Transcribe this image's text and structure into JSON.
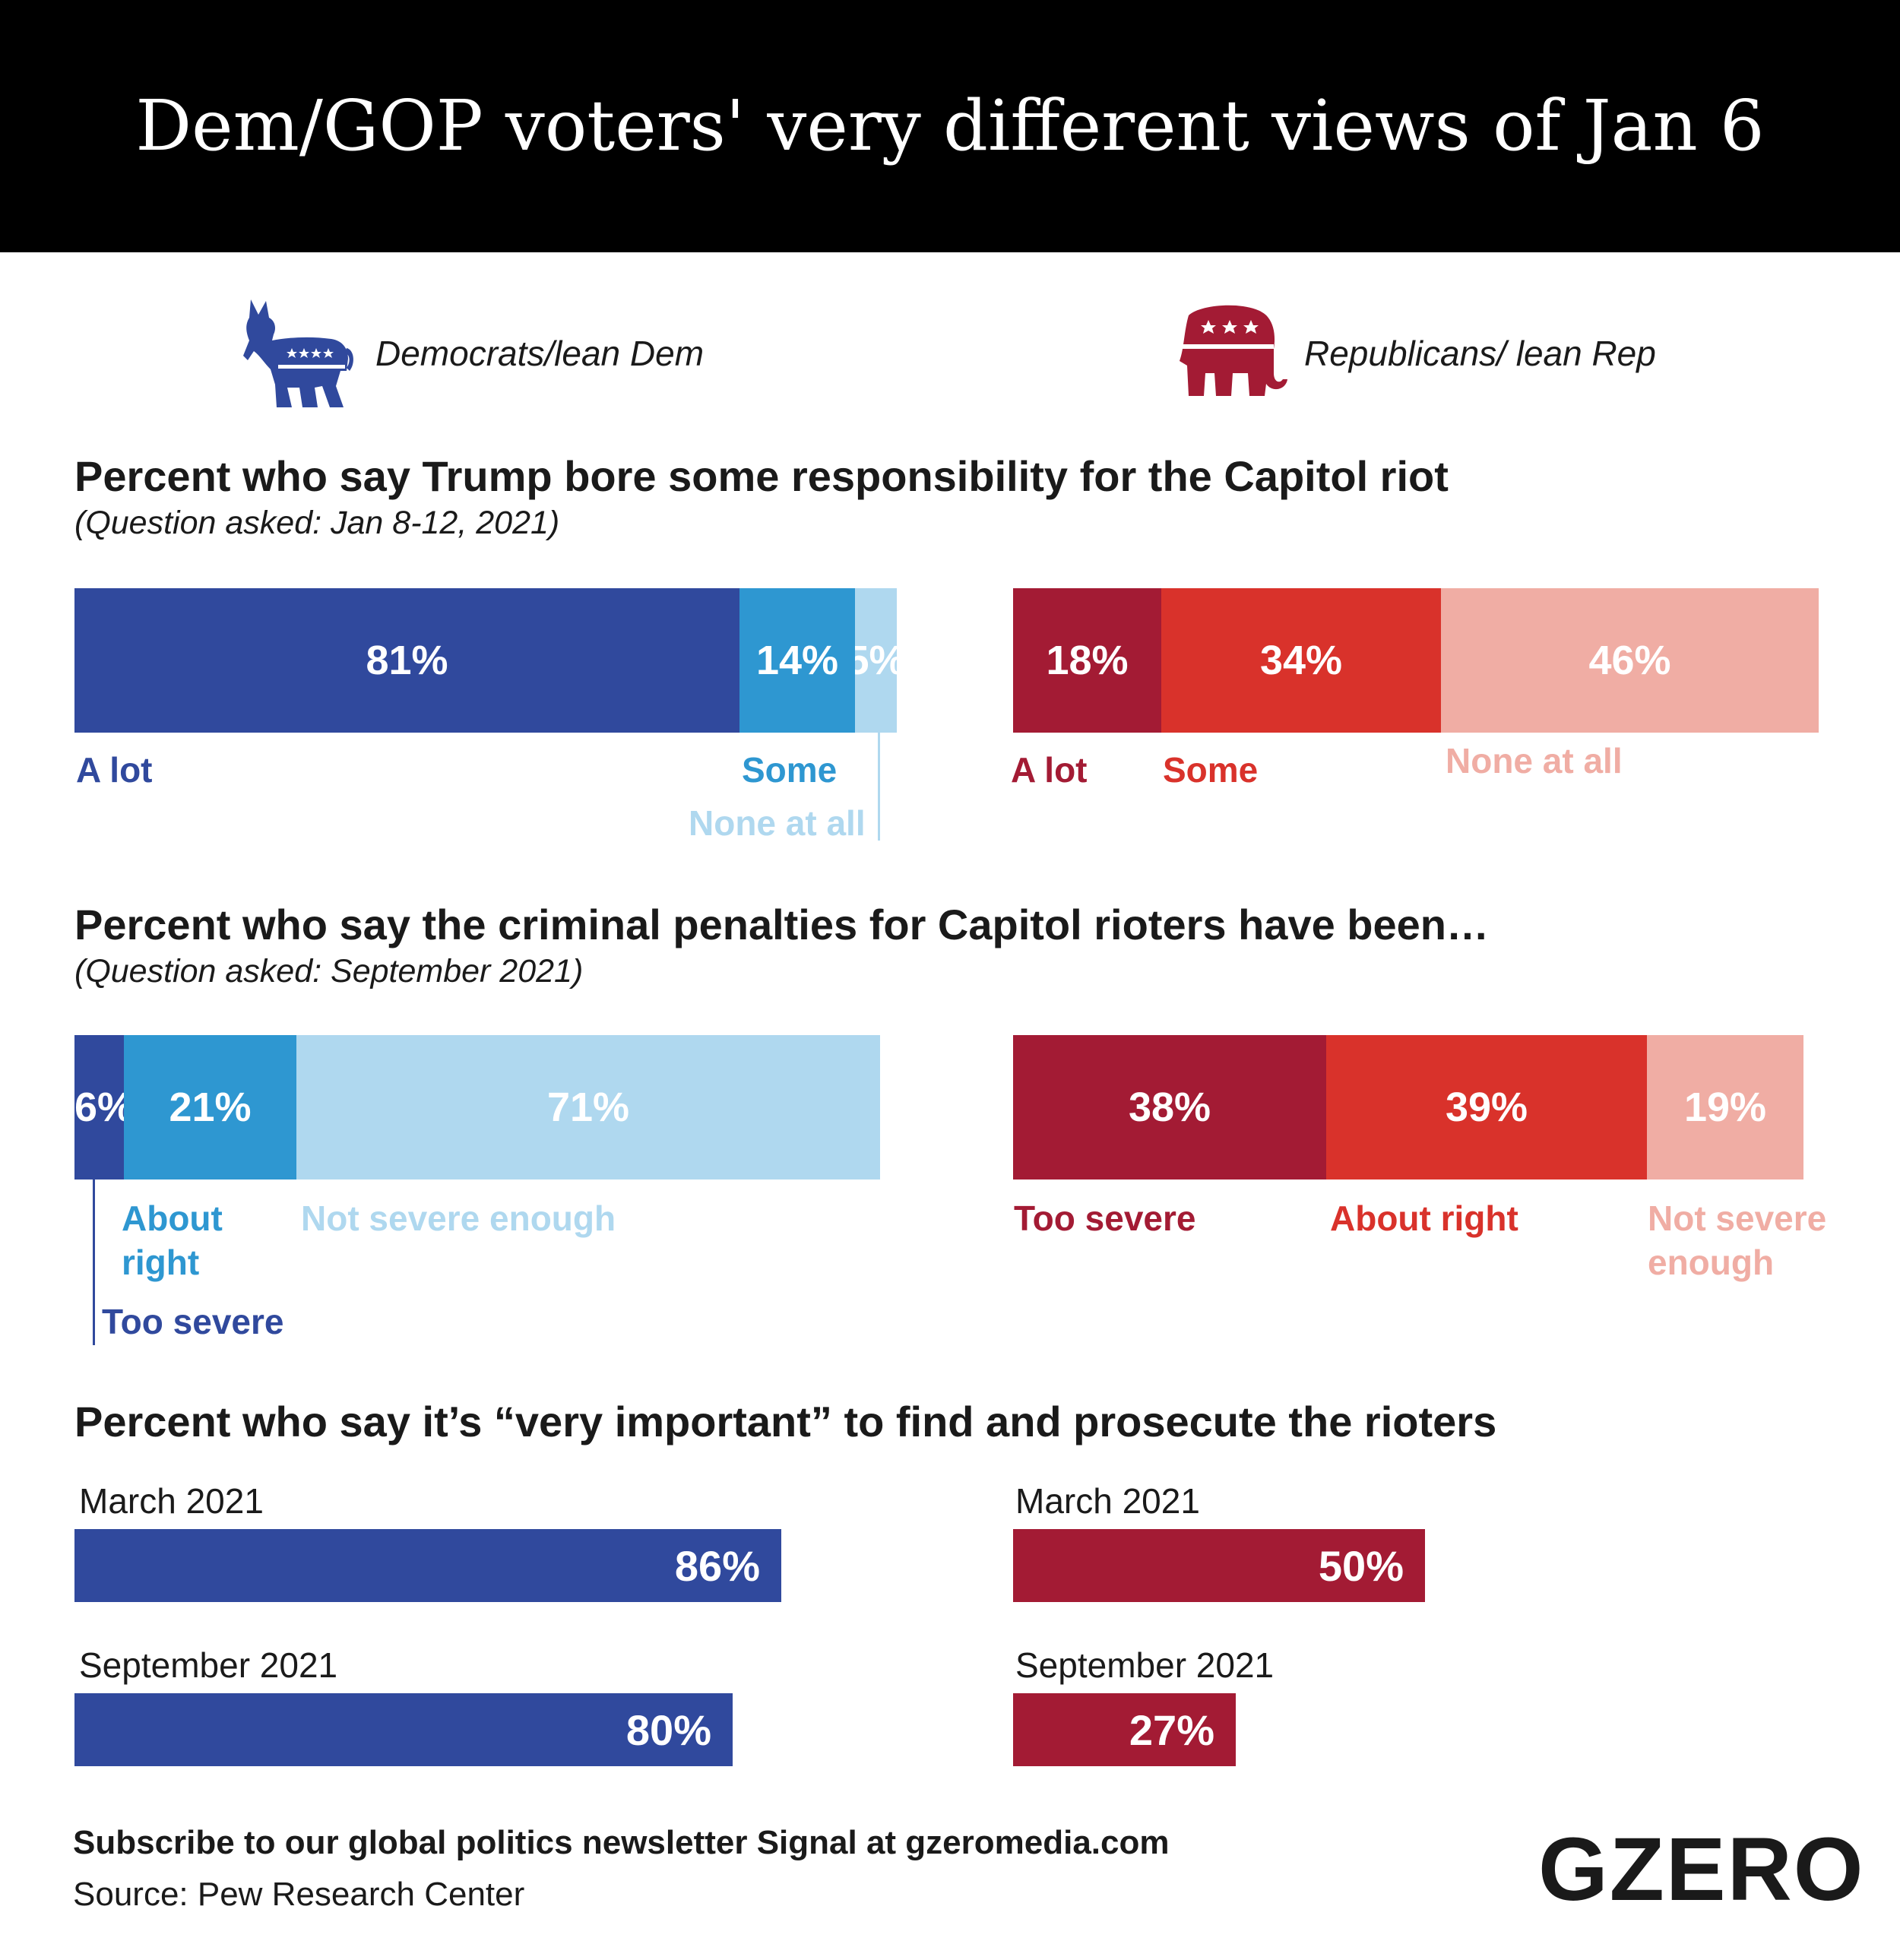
{
  "header": {
    "title": "Dem/GOP voters' very different views of Jan 6"
  },
  "parties": {
    "dem": {
      "label": "Democrats/lean Dem",
      "icon": "donkey-icon",
      "color": "#30499d"
    },
    "rep": {
      "label": "Republicans/ lean Rep",
      "icon": "elephant-icon",
      "color": "#a31b34"
    }
  },
  "colors": {
    "dem_dark": "#30499d",
    "dem_mid": "#2e97d1",
    "dem_light": "#afd8ef",
    "rep_dark": "#a31b34",
    "rep_mid": "#d9322b",
    "rep_light": "#f0ada4"
  },
  "chart_data": [
    {
      "type": "bar",
      "stacked": true,
      "orientation": "horizontal",
      "title": "Percent who say Trump bore some responsibility for the Capitol riot",
      "subtitle": "(Question asked: Jan 8-12, 2021)",
      "categories": [
        "A lot",
        "Some",
        "None at all"
      ],
      "series": [
        {
          "name": "Democrats/lean Dem",
          "values": [
            81,
            14,
            5
          ],
          "labels": [
            "81%",
            "14%",
            "5%"
          ]
        },
        {
          "name": "Republicans/ lean Rep",
          "values": [
            18,
            34,
            46
          ],
          "labels": [
            "18%",
            "34%",
            "46%"
          ]
        }
      ]
    },
    {
      "type": "bar",
      "stacked": true,
      "orientation": "horizontal",
      "title": "Percent who say the criminal penalties for Capitol rioters have been…",
      "subtitle": "(Question asked: September 2021)",
      "categories": [
        "Too severe",
        "About right",
        "Not severe enough"
      ],
      "series": [
        {
          "name": "Democrats/lean Dem",
          "values": [
            6,
            21,
            71
          ],
          "labels": [
            "6%",
            "21%",
            "71%"
          ]
        },
        {
          "name": "Republicans/ lean Rep",
          "values": [
            38,
            39,
            19
          ],
          "labels": [
            "38%",
            "39%",
            "19%"
          ]
        }
      ],
      "rep_labels_wrapped": [
        "Too severe",
        "About right",
        "Not severe\nenough"
      ],
      "dem_labels_wrapped": [
        "Too severe",
        "About\nright",
        "Not severe enough"
      ]
    },
    {
      "type": "bar",
      "orientation": "horizontal",
      "title": "Percent who say it’s “very important” to find and prosecute the rioters",
      "categories": [
        "March 2021",
        "September 2021"
      ],
      "series": [
        {
          "name": "Democrats/lean Dem",
          "values": [
            86,
            80
          ],
          "labels": [
            "86%",
            "80%"
          ]
        },
        {
          "name": "Republicans/ lean Rep",
          "values": [
            50,
            27
          ],
          "labels": [
            "50%",
            "27%"
          ]
        }
      ]
    }
  ],
  "footer": {
    "subscribe": "Subscribe to our global politics newsletter Signal at gzeromedia.com",
    "source": "Source: Pew Research Center",
    "logo": "GZERO"
  }
}
